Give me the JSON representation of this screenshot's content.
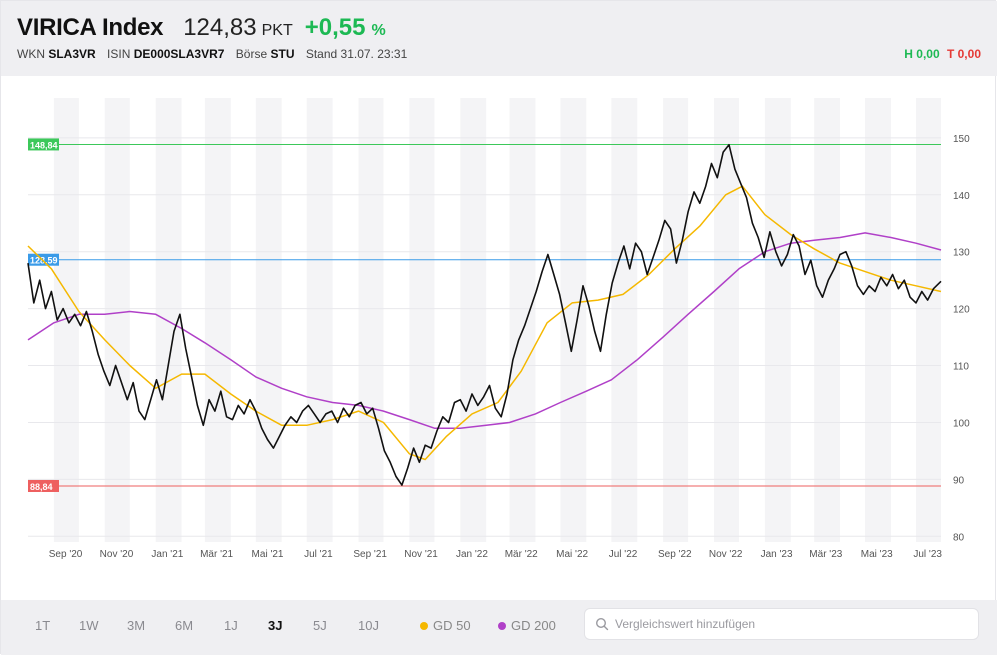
{
  "header": {
    "name": "VIRICA Index",
    "value": "124,83",
    "unit": "PKT",
    "change": "+0,55",
    "change_unit": "%",
    "wkn_label": "WKN",
    "wkn": "SLA3VR",
    "isin_label": "ISIN",
    "isin": "DE000SLA3VR7",
    "boerse_label": "Börse",
    "boerse": "STU",
    "stand": "Stand 31.07. 23:31",
    "high": "H 0,00",
    "low": "T 0,00"
  },
  "colors": {
    "price": "#111111",
    "gd50": "#f5b800",
    "gd200": "#b040c8",
    "high_line": "#3cc85a",
    "mid_line": "#3a9be8",
    "low_line": "#ee5f5f",
    "positive": "#1db954",
    "negative": "#e53935"
  },
  "footer": {
    "ranges": [
      "1T",
      "1W",
      "3M",
      "6M",
      "1J",
      "3J",
      "5J",
      "10J"
    ],
    "active_range": "3J",
    "legend": [
      {
        "label": "GD 50",
        "color": "#f5b800"
      },
      {
        "label": "GD 200",
        "color": "#b040c8"
      }
    ],
    "compare_placeholder": "Vergleichswert hinzufügen",
    "search_icon": "search-icon"
  },
  "chart_data": {
    "type": "line",
    "x_ticks": [
      "Sep '20",
      "Nov '20",
      "Jan '21",
      "Mär '21",
      "Mai '21",
      "Jul '21",
      "Sep '21",
      "Nov '21",
      "Jan '22",
      "Mär '22",
      "Mai '22",
      "Jul '22",
      "Sep '22",
      "Nov '22",
      "Jan '23",
      "Mär '23",
      "Mai '23",
      "Jul '23"
    ],
    "y_ticks": [
      80,
      90,
      100,
      110,
      120,
      130,
      140,
      150
    ],
    "ylim": [
      79,
      157
    ],
    "x_range": [
      "2020-08-01",
      "2023-07-31"
    ],
    "grid": true,
    "reference_lines": [
      {
        "label": "148,84",
        "value": 148.84,
        "color": "#3cc85a"
      },
      {
        "label": "128,59",
        "value": 128.59,
        "color": "#3a9be8"
      },
      {
        "label": "88,84",
        "value": 88.84,
        "color": "#ee5f5f"
      }
    ],
    "series": [
      {
        "name": "VIRICA Index",
        "color": "#111111",
        "points": [
          [
            "2020-08-01",
            128.0
          ],
          [
            "2020-08-08",
            121.0
          ],
          [
            "2020-08-15",
            125.0
          ],
          [
            "2020-08-22",
            120.0
          ],
          [
            "2020-08-29",
            123.0
          ],
          [
            "2020-09-05",
            118.0
          ],
          [
            "2020-09-12",
            120.0
          ],
          [
            "2020-09-19",
            117.5
          ],
          [
            "2020-09-26",
            119.0
          ],
          [
            "2020-10-03",
            117.0
          ],
          [
            "2020-10-10",
            119.5
          ],
          [
            "2020-10-17",
            116.0
          ],
          [
            "2020-10-24",
            112.0
          ],
          [
            "2020-10-31",
            109.0
          ],
          [
            "2020-11-07",
            106.5
          ],
          [
            "2020-11-14",
            110.0
          ],
          [
            "2020-11-21",
            107.0
          ],
          [
            "2020-11-28",
            104.0
          ],
          [
            "2020-12-05",
            107.0
          ],
          [
            "2020-12-12",
            102.0
          ],
          [
            "2020-12-19",
            100.5
          ],
          [
            "2020-12-26",
            104.0
          ],
          [
            "2021-01-02",
            107.5
          ],
          [
            "2021-01-09",
            104.0
          ],
          [
            "2021-01-16",
            110.0
          ],
          [
            "2021-01-23",
            116.0
          ],
          [
            "2021-01-30",
            119.0
          ],
          [
            "2021-02-06",
            113.0
          ],
          [
            "2021-02-13",
            108.0
          ],
          [
            "2021-02-20",
            103.0
          ],
          [
            "2021-02-27",
            99.5
          ],
          [
            "2021-03-06",
            104.0
          ],
          [
            "2021-03-13",
            102.0
          ],
          [
            "2021-03-20",
            105.5
          ],
          [
            "2021-03-27",
            101.0
          ],
          [
            "2021-04-03",
            100.5
          ],
          [
            "2021-04-10",
            103.0
          ],
          [
            "2021-04-17",
            101.5
          ],
          [
            "2021-04-24",
            104.0
          ],
          [
            "2021-05-01",
            102.0
          ],
          [
            "2021-05-08",
            99.0
          ],
          [
            "2021-05-15",
            97.0
          ],
          [
            "2021-05-22",
            95.5
          ],
          [
            "2021-05-29",
            97.5
          ],
          [
            "2021-06-05",
            99.5
          ],
          [
            "2021-06-12",
            101.0
          ],
          [
            "2021-06-19",
            100.0
          ],
          [
            "2021-06-26",
            102.0
          ],
          [
            "2021-07-03",
            103.0
          ],
          [
            "2021-07-10",
            101.5
          ],
          [
            "2021-07-17",
            100.0
          ],
          [
            "2021-07-24",
            101.5
          ],
          [
            "2021-07-31",
            102.0
          ],
          [
            "2021-08-07",
            100.0
          ],
          [
            "2021-08-14",
            102.5
          ],
          [
            "2021-08-21",
            101.0
          ],
          [
            "2021-08-28",
            103.0
          ],
          [
            "2021-09-04",
            103.5
          ],
          [
            "2021-09-11",
            101.5
          ],
          [
            "2021-09-18",
            102.5
          ],
          [
            "2021-09-25",
            99.0
          ],
          [
            "2021-10-02",
            95.0
          ],
          [
            "2021-10-09",
            93.0
          ],
          [
            "2021-10-16",
            90.5
          ],
          [
            "2021-10-23",
            89.0
          ],
          [
            "2021-10-30",
            92.0
          ],
          [
            "2021-11-06",
            95.5
          ],
          [
            "2021-11-13",
            93.0
          ],
          [
            "2021-11-20",
            96.0
          ],
          [
            "2021-11-27",
            95.5
          ],
          [
            "2021-12-04",
            98.5
          ],
          [
            "2021-12-11",
            101.0
          ],
          [
            "2021-12-18",
            100.0
          ],
          [
            "2021-12-25",
            103.5
          ],
          [
            "2022-01-01",
            104.0
          ],
          [
            "2022-01-08",
            102.0
          ],
          [
            "2022-01-15",
            105.0
          ],
          [
            "2022-01-22",
            103.0
          ],
          [
            "2022-01-29",
            104.5
          ],
          [
            "2022-02-05",
            106.5
          ],
          [
            "2022-02-12",
            102.5
          ],
          [
            "2022-02-19",
            101.0
          ],
          [
            "2022-02-26",
            105.0
          ],
          [
            "2022-03-05",
            111.0
          ],
          [
            "2022-03-12",
            114.5
          ],
          [
            "2022-03-19",
            117.0
          ],
          [
            "2022-03-26",
            120.0
          ],
          [
            "2022-04-02",
            123.0
          ],
          [
            "2022-04-09",
            126.5
          ],
          [
            "2022-04-16",
            129.5
          ],
          [
            "2022-04-23",
            126.0
          ],
          [
            "2022-04-30",
            122.5
          ],
          [
            "2022-05-07",
            117.5
          ],
          [
            "2022-05-14",
            112.5
          ],
          [
            "2022-05-21",
            118.0
          ],
          [
            "2022-05-28",
            124.0
          ],
          [
            "2022-06-04",
            120.5
          ],
          [
            "2022-06-11",
            116.0
          ],
          [
            "2022-06-18",
            112.5
          ],
          [
            "2022-06-25",
            119.0
          ],
          [
            "2022-07-02",
            124.5
          ],
          [
            "2022-07-09",
            128.0
          ],
          [
            "2022-07-16",
            131.0
          ],
          [
            "2022-07-23",
            127.0
          ],
          [
            "2022-07-30",
            131.5
          ],
          [
            "2022-08-06",
            130.0
          ],
          [
            "2022-08-13",
            126.0
          ],
          [
            "2022-08-20",
            129.0
          ],
          [
            "2022-08-27",
            132.0
          ],
          [
            "2022-09-03",
            135.5
          ],
          [
            "2022-09-10",
            134.0
          ],
          [
            "2022-09-17",
            128.0
          ],
          [
            "2022-09-24",
            132.0
          ],
          [
            "2022-10-01",
            137.0
          ],
          [
            "2022-10-08",
            140.5
          ],
          [
            "2022-10-15",
            138.5
          ],
          [
            "2022-10-22",
            141.5
          ],
          [
            "2022-10-29",
            145.5
          ],
          [
            "2022-11-05",
            143.0
          ],
          [
            "2022-11-12",
            147.5
          ],
          [
            "2022-11-19",
            148.8
          ],
          [
            "2022-11-26",
            144.5
          ],
          [
            "2022-12-03",
            142.0
          ],
          [
            "2022-12-10",
            139.5
          ],
          [
            "2022-12-17",
            135.0
          ],
          [
            "2022-12-24",
            132.5
          ],
          [
            "2022-12-31",
            129.0
          ],
          [
            "2023-01-07",
            133.5
          ],
          [
            "2023-01-14",
            130.0
          ],
          [
            "2023-01-21",
            127.5
          ],
          [
            "2023-01-28",
            129.5
          ],
          [
            "2023-02-04",
            133.0
          ],
          [
            "2023-02-11",
            131.0
          ],
          [
            "2023-02-18",
            126.0
          ],
          [
            "2023-02-25",
            128.5
          ],
          [
            "2023-03-04",
            124.0
          ],
          [
            "2023-03-11",
            122.0
          ],
          [
            "2023-03-18",
            125.0
          ],
          [
            "2023-03-25",
            127.0
          ],
          [
            "2023-04-01",
            129.5
          ],
          [
            "2023-04-08",
            130.0
          ],
          [
            "2023-04-15",
            127.5
          ],
          [
            "2023-04-22",
            124.0
          ],
          [
            "2023-04-29",
            122.5
          ],
          [
            "2023-05-06",
            124.0
          ],
          [
            "2023-05-13",
            123.0
          ],
          [
            "2023-05-20",
            125.5
          ],
          [
            "2023-05-27",
            124.0
          ],
          [
            "2023-06-03",
            126.0
          ],
          [
            "2023-06-10",
            123.5
          ],
          [
            "2023-06-17",
            125.0
          ],
          [
            "2023-06-24",
            122.0
          ],
          [
            "2023-07-01",
            121.0
          ],
          [
            "2023-07-08",
            123.0
          ],
          [
            "2023-07-15",
            121.5
          ],
          [
            "2023-07-22",
            123.5
          ],
          [
            "2023-07-31",
            124.8
          ]
        ]
      },
      {
        "name": "GD 50",
        "color": "#f5b800",
        "points": [
          [
            "2020-08-01",
            131.0
          ],
          [
            "2020-08-29",
            127.0
          ],
          [
            "2020-10-01",
            119.5
          ],
          [
            "2020-11-01",
            114.5
          ],
          [
            "2020-12-01",
            110.0
          ],
          [
            "2021-01-01",
            106.0
          ],
          [
            "2021-02-01",
            108.5
          ],
          [
            "2021-03-01",
            108.5
          ],
          [
            "2021-04-01",
            105.0
          ],
          [
            "2021-05-01",
            102.0
          ],
          [
            "2021-06-01",
            99.5
          ],
          [
            "2021-07-01",
            99.5
          ],
          [
            "2021-08-01",
            100.5
          ],
          [
            "2021-09-01",
            102.0
          ],
          [
            "2021-10-01",
            100.0
          ],
          [
            "2021-11-01",
            94.5
          ],
          [
            "2021-11-20",
            93.5
          ],
          [
            "2021-12-15",
            97.5
          ],
          [
            "2022-01-15",
            101.5
          ],
          [
            "2022-02-15",
            103.5
          ],
          [
            "2022-03-15",
            109.0
          ],
          [
            "2022-04-15",
            117.5
          ],
          [
            "2022-05-15",
            121.0
          ],
          [
            "2022-06-15",
            121.5
          ],
          [
            "2022-07-15",
            122.5
          ],
          [
            "2022-08-15",
            126.0
          ],
          [
            "2022-09-15",
            130.5
          ],
          [
            "2022-10-15",
            134.5
          ],
          [
            "2022-11-15",
            140.0
          ],
          [
            "2022-12-05",
            141.5
          ],
          [
            "2023-01-01",
            136.5
          ],
          [
            "2023-02-01",
            133.0
          ],
          [
            "2023-03-01",
            130.5
          ],
          [
            "2023-04-01",
            128.0
          ],
          [
            "2023-05-01",
            126.5
          ],
          [
            "2023-06-01",
            125.0
          ],
          [
            "2023-07-01",
            124.0
          ],
          [
            "2023-07-31",
            123.0
          ]
        ]
      },
      {
        "name": "GD 200",
        "color": "#b040c8",
        "points": [
          [
            "2020-08-01",
            114.5
          ],
          [
            "2020-09-01",
            117.5
          ],
          [
            "2020-10-01",
            119.0
          ],
          [
            "2020-11-01",
            119.0
          ],
          [
            "2020-12-01",
            119.5
          ],
          [
            "2021-01-01",
            119.0
          ],
          [
            "2021-02-01",
            116.5
          ],
          [
            "2021-03-01",
            114.0
          ],
          [
            "2021-04-01",
            111.0
          ],
          [
            "2021-05-01",
            108.0
          ],
          [
            "2021-06-01",
            106.0
          ],
          [
            "2021-07-01",
            104.5
          ],
          [
            "2021-08-01",
            103.5
          ],
          [
            "2021-09-01",
            103.0
          ],
          [
            "2021-10-01",
            102.0
          ],
          [
            "2021-11-01",
            100.5
          ],
          [
            "2021-12-01",
            99.0
          ],
          [
            "2022-01-01",
            99.0
          ],
          [
            "2022-02-01",
            99.5
          ],
          [
            "2022-03-01",
            100.0
          ],
          [
            "2022-04-01",
            101.5
          ],
          [
            "2022-05-01",
            103.5
          ],
          [
            "2022-06-01",
            105.5
          ],
          [
            "2022-07-01",
            107.5
          ],
          [
            "2022-08-01",
            111.0
          ],
          [
            "2022-09-01",
            115.0
          ],
          [
            "2022-10-01",
            119.0
          ],
          [
            "2022-11-01",
            123.0
          ],
          [
            "2022-12-01",
            127.0
          ],
          [
            "2023-01-01",
            130.0
          ],
          [
            "2023-02-01",
            131.5
          ],
          [
            "2023-03-01",
            132.0
          ],
          [
            "2023-04-01",
            132.5
          ],
          [
            "2023-05-01",
            133.3
          ],
          [
            "2023-06-01",
            132.5
          ],
          [
            "2023-07-01",
            131.5
          ],
          [
            "2023-07-31",
            130.3
          ]
        ]
      }
    ]
  }
}
